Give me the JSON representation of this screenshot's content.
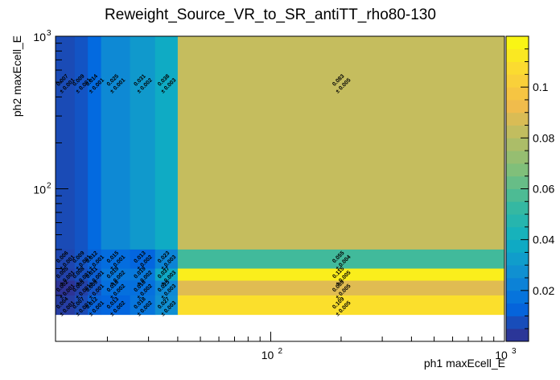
{
  "chart_data": {
    "type": "heatmap",
    "title": "Reweight_Source_VR_to_SR_antiTT_rho80-130",
    "xlabel": "ph1 maxEcell_E",
    "ylabel": "ph2 maxEcell_E",
    "x_scale": "log",
    "y_scale": "log",
    "xlim": [
      12,
      1000
    ],
    "ylim": [
      10,
      1000
    ],
    "x_tick_labels": [
      {
        "value": 100,
        "base": "10",
        "exp": "2"
      },
      {
        "value": 1000,
        "base": "10",
        "exp": "3"
      }
    ],
    "y_tick_labels": [
      {
        "value": 100,
        "base": "10",
        "exp": "2"
      },
      {
        "value": 1000,
        "base": "10",
        "exp": "3"
      }
    ],
    "x_edges": [
      12,
      14.5,
      16.5,
      18.8,
      25,
      32,
      40,
      1000
    ],
    "y_edges": [
      10,
      15,
      20,
      25,
      30,
      40,
      1000
    ],
    "z_range": [
      0,
      0.12
    ],
    "palette_labels": [
      "0.02",
      "0.04",
      "0.06",
      "0.08",
      "0.1"
    ],
    "palette_values": [
      0.02,
      0.04,
      0.06,
      0.08,
      0.1
    ],
    "cells": [
      {
        "ix": 0,
        "iy": 5,
        "value": 0.007,
        "label": "0.007",
        "error": "± 0.001"
      },
      {
        "ix": 1,
        "iy": 5,
        "value": 0.009,
        "label": "0.009",
        "error": "± 0.001"
      },
      {
        "ix": 2,
        "iy": 5,
        "value": 0.014,
        "label": "0.014",
        "error": "± 0.001"
      },
      {
        "ix": 3,
        "iy": 5,
        "value": 0.025,
        "label": "0.025",
        "error": "± 0.001"
      },
      {
        "ix": 4,
        "iy": 5,
        "value": 0.031,
        "label": "0.031",
        "error": "± 0.002"
      },
      {
        "ix": 5,
        "iy": 5,
        "value": 0.038,
        "label": "0.038",
        "error": "± 0.003"
      },
      {
        "ix": 6,
        "iy": 5,
        "value": 0.083,
        "label": "0.083",
        "error": "± 0.005"
      },
      {
        "ix": 0,
        "iy": 4,
        "value": 0.006,
        "label": "0.006",
        "error": "± 0.001"
      },
      {
        "ix": 1,
        "iy": 4,
        "value": 0.009,
        "label": "0.009",
        "error": "± 0.001"
      },
      {
        "ix": 2,
        "iy": 4,
        "value": 0.012,
        "label": "0.012",
        "error": "± 0.001"
      },
      {
        "ix": 3,
        "iy": 4,
        "value": 0.015,
        "label": "0.015",
        "error": "± 0.001"
      },
      {
        "ix": 4,
        "iy": 4,
        "value": 0.013,
        "label": "0.013",
        "error": "± 0.002"
      },
      {
        "ix": 5,
        "iy": 4,
        "value": 0.023,
        "label": "0.023",
        "error": "± 0.003"
      },
      {
        "ix": 6,
        "iy": 4,
        "value": 0.055,
        "label": "0.055",
        "error": "± 0.004"
      },
      {
        "ix": 0,
        "iy": 3,
        "value": 0.005,
        "label": "0.005",
        "error": "± 0.001"
      },
      {
        "ix": 1,
        "iy": 3,
        "value": 0.008,
        "label": "0.008",
        "error": "± 0.001"
      },
      {
        "ix": 2,
        "iy": 3,
        "value": 0.011,
        "label": "0.011",
        "error": "± 0.001"
      },
      {
        "ix": 3,
        "iy": 3,
        "value": 0.019,
        "label": "0.019",
        "error": "± 0.002"
      },
      {
        "ix": 4,
        "iy": 3,
        "value": 0.019,
        "label": "0.019",
        "error": "± 0.002"
      },
      {
        "ix": 5,
        "iy": 3,
        "value": 0.037,
        "label": "0.037",
        "error": "± 0.003"
      },
      {
        "ix": 6,
        "iy": 3,
        "value": 0.115,
        "label": "0.115",
        "error": "± 0.005"
      },
      {
        "ix": 0,
        "iy": 2,
        "value": 0.002,
        "label": "0.002",
        "error": "± 0.001"
      },
      {
        "ix": 1,
        "iy": 2,
        "value": 0.005,
        "label": "0.005",
        "error": "± 0.001"
      },
      {
        "ix": 2,
        "iy": 2,
        "value": 0.009,
        "label": "0.009",
        "error": "± 0.001"
      },
      {
        "ix": 3,
        "iy": 2,
        "value": 0.016,
        "label": "0.016",
        "error": "± 0.002"
      },
      {
        "ix": 4,
        "iy": 2,
        "value": 0.016,
        "label": "0.016",
        "error": "± 0.002"
      },
      {
        "ix": 5,
        "iy": 2,
        "value": 0.025,
        "label": "0.025",
        "error": "± 0.003"
      },
      {
        "ix": 6,
        "iy": 2,
        "value": 0.089,
        "label": "0.089",
        "error": "± 0.005"
      },
      {
        "ix": 0,
        "iy": 1,
        "value": 0.004,
        "label": "0.004",
        "error": "± 0.001"
      },
      {
        "ix": 1,
        "iy": 1,
        "value": 0.007,
        "label": "0.007",
        "error": "± 0.001"
      },
      {
        "ix": 2,
        "iy": 1,
        "value": 0.012,
        "label": "0.012",
        "error": "± 0.001"
      },
      {
        "ix": 3,
        "iy": 1,
        "value": 0.013,
        "label": "0.013",
        "error": "± 0.002"
      },
      {
        "ix": 4,
        "iy": 1,
        "value": 0.018,
        "label": "0.018",
        "error": "± 0.002"
      },
      {
        "ix": 5,
        "iy": 1,
        "value": 0.027,
        "label": "0.027",
        "error": "± 0.003"
      },
      {
        "ix": 6,
        "iy": 1,
        "value": 0.109,
        "label": "0.109",
        "error": "± 0.005"
      }
    ],
    "grid": false,
    "legend": "none (color palette on right)"
  }
}
